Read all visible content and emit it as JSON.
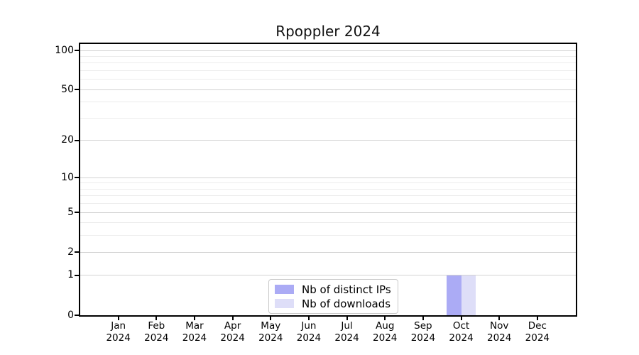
{
  "title": "Rpoppler 2024",
  "legend": {
    "items": [
      {
        "label": "Nb of distinct IPs",
        "color": "#ababf5"
      },
      {
        "label": "Nb of downloads",
        "color": "#dedef8"
      }
    ]
  },
  "colors": {
    "background": "#ffffff",
    "axis": "#000000",
    "grid_major": "#d2d2d2",
    "grid_minor": "#ececec",
    "distinct_ips_bar": "#ababf5",
    "downloads_bar": "#dedef8",
    "legend_border": "#c9c9c9"
  },
  "chart_data": {
    "type": "bar",
    "title": "Rpoppler 2024",
    "xlabel": "",
    "ylabel": "",
    "categories": [
      "Jan 2024",
      "Feb 2024",
      "Mar 2024",
      "Apr 2024",
      "May 2024",
      "Jun 2024",
      "Jul 2024",
      "Aug 2024",
      "Sep 2024",
      "Oct 2024",
      "Nov 2024",
      "Dec 2024"
    ],
    "series": [
      {
        "name": "Nb of distinct IPs",
        "color": "#ababf5",
        "values": [
          0,
          0,
          0,
          0,
          0,
          0,
          0,
          0,
          0,
          1,
          0,
          0
        ]
      },
      {
        "name": "Nb of downloads",
        "color": "#dedef8",
        "values": [
          0,
          0,
          0,
          0,
          0,
          0,
          0,
          0,
          0,
          1,
          0,
          0
        ]
      }
    ],
    "yscale": "log1p",
    "ylim": [
      0,
      100
    ],
    "yticks": [
      0,
      1,
      2,
      5,
      10,
      20,
      50,
      100
    ],
    "minor_yticks": [
      3,
      4,
      6,
      7,
      8,
      9,
      30,
      40,
      60,
      70,
      80,
      90
    ],
    "grid": true,
    "legend_position": "lower center"
  }
}
